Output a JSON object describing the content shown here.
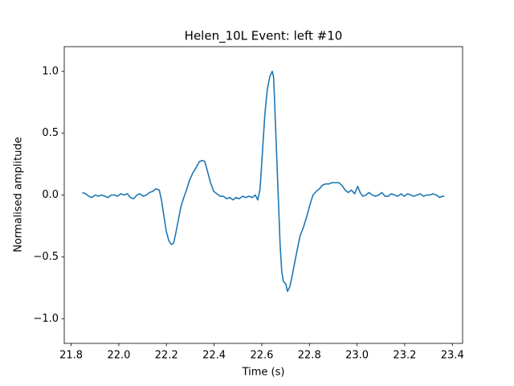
{
  "chart_data": {
    "type": "line",
    "title": "Helen_10L Event: left #10",
    "xlabel": "Time (s)",
    "ylabel": "Normalised amplitude",
    "color": "#1f77b4",
    "grid": false,
    "xlim": [
      21.771,
      23.443
    ],
    "ylim": [
      -1.2,
      1.2
    ],
    "xticks": [
      21.8,
      {
        "value": 22,
        "label": "22.0"
      },
      22.2,
      22.4,
      22.6,
      22.8,
      {
        "value": 23,
        "label": "23.0"
      },
      23.2,
      23.4
    ],
    "yticks": [
      {
        "value": -1,
        "label": "−1.0"
      },
      {
        "value": -0.5,
        "label": "−0.5"
      },
      {
        "value": 0,
        "label": "0.0"
      },
      0.5,
      {
        "value": 1,
        "label": "1.0"
      }
    ],
    "x": [
      21.847,
      21.861,
      21.874,
      21.887,
      21.901,
      21.914,
      21.928,
      21.941,
      21.955,
      21.968,
      21.982,
      21.995,
      22.008,
      22.022,
      22.035,
      22.049,
      22.062,
      22.076,
      22.089,
      22.102,
      22.116,
      22.129,
      22.143,
      22.156,
      22.17,
      22.18,
      22.19,
      22.2,
      22.21,
      22.22,
      22.23,
      22.24,
      22.25,
      22.26,
      22.271,
      22.284,
      22.297,
      22.311,
      22.324,
      22.338,
      22.351,
      22.361,
      22.371,
      22.385,
      22.398,
      22.412,
      22.425,
      22.439,
      22.452,
      22.466,
      22.479,
      22.492,
      22.506,
      22.519,
      22.533,
      22.546,
      22.56,
      22.573,
      22.583,
      22.593,
      22.603,
      22.613,
      22.623,
      22.634,
      22.644,
      22.65,
      22.657,
      22.664,
      22.671,
      22.677,
      22.684,
      22.691,
      22.701,
      22.708,
      22.718,
      22.728,
      22.738,
      22.748,
      22.761,
      22.775,
      22.788,
      22.802,
      22.815,
      22.829,
      22.842,
      22.855,
      22.869,
      22.882,
      22.896,
      22.909,
      22.923,
      22.936,
      22.95,
      22.963,
      22.976,
      22.99,
      23.003,
      23.013,
      23.024,
      23.037,
      23.05,
      23.064,
      23.077,
      23.091,
      23.104,
      23.118,
      23.131,
      23.144,
      23.158,
      23.171,
      23.185,
      23.198,
      23.212,
      23.225,
      23.238,
      23.252,
      23.265,
      23.279,
      23.292,
      23.306,
      23.319,
      23.333,
      23.346,
      23.359,
      23.366
    ],
    "values": [
      0.02,
      0.01,
      -0.01,
      -0.02,
      0.0,
      -0.01,
      0.0,
      -0.01,
      -0.02,
      0.0,
      0.0,
      -0.01,
      0.01,
      0.0,
      0.01,
      -0.02,
      -0.03,
      0.0,
      0.01,
      -0.01,
      0.0,
      0.02,
      0.03,
      0.05,
      0.04,
      -0.05,
      -0.18,
      -0.3,
      -0.37,
      -0.4,
      -0.39,
      -0.3,
      -0.2,
      -0.1,
      -0.03,
      0.04,
      0.12,
      0.18,
      0.22,
      0.27,
      0.28,
      0.27,
      0.2,
      0.1,
      0.03,
      0.01,
      -0.01,
      -0.01,
      -0.03,
      -0.02,
      -0.04,
      -0.02,
      -0.03,
      -0.01,
      -0.02,
      -0.01,
      -0.02,
      0.0,
      -0.04,
      0.05,
      0.35,
      0.65,
      0.85,
      0.96,
      1.0,
      0.95,
      0.6,
      0.25,
      -0.1,
      -0.4,
      -0.62,
      -0.7,
      -0.72,
      -0.78,
      -0.74,
      -0.65,
      -0.55,
      -0.45,
      -0.33,
      -0.26,
      -0.18,
      -0.08,
      0.0,
      0.03,
      0.05,
      0.08,
      0.09,
      0.09,
      0.1,
      0.1,
      0.1,
      0.08,
      0.04,
      0.02,
      0.04,
      0.01,
      0.07,
      0.02,
      -0.01,
      0.0,
      0.02,
      0.0,
      -0.01,
      0.0,
      0.02,
      -0.01,
      -0.01,
      0.01,
      0.0,
      -0.01,
      0.01,
      -0.01,
      0.01,
      0.0,
      -0.01,
      0.0,
      0.01,
      -0.01,
      0.0,
      0.0,
      0.01,
      0.0,
      -0.02,
      -0.01,
      -0.01
    ]
  }
}
